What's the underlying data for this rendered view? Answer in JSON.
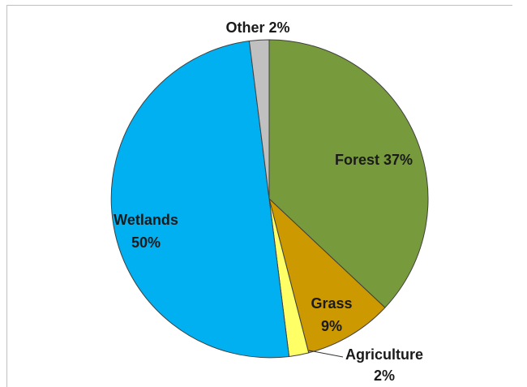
{
  "chart_data": {
    "type": "pie",
    "slices": [
      {
        "label": "Forest",
        "value": 37,
        "color": "#779a3c"
      },
      {
        "label": "Grass",
        "value": 9,
        "color": "#cc9900"
      },
      {
        "label": "Agriculture",
        "value": 2,
        "color": "#ffff66"
      },
      {
        "label": "Wetlands",
        "value": 50,
        "color": "#00b0f0"
      },
      {
        "label": "Other",
        "value": 2,
        "color": "#c0c0c0"
      }
    ],
    "labels": {
      "forest": "Forest 37%",
      "grass_name": "Grass",
      "grass_pct": "9%",
      "agri_name": "Agriculture",
      "agri_pct": "2%",
      "wet_name": "Wetlands",
      "wet_pct": "50%",
      "other": "Other 2%"
    }
  }
}
